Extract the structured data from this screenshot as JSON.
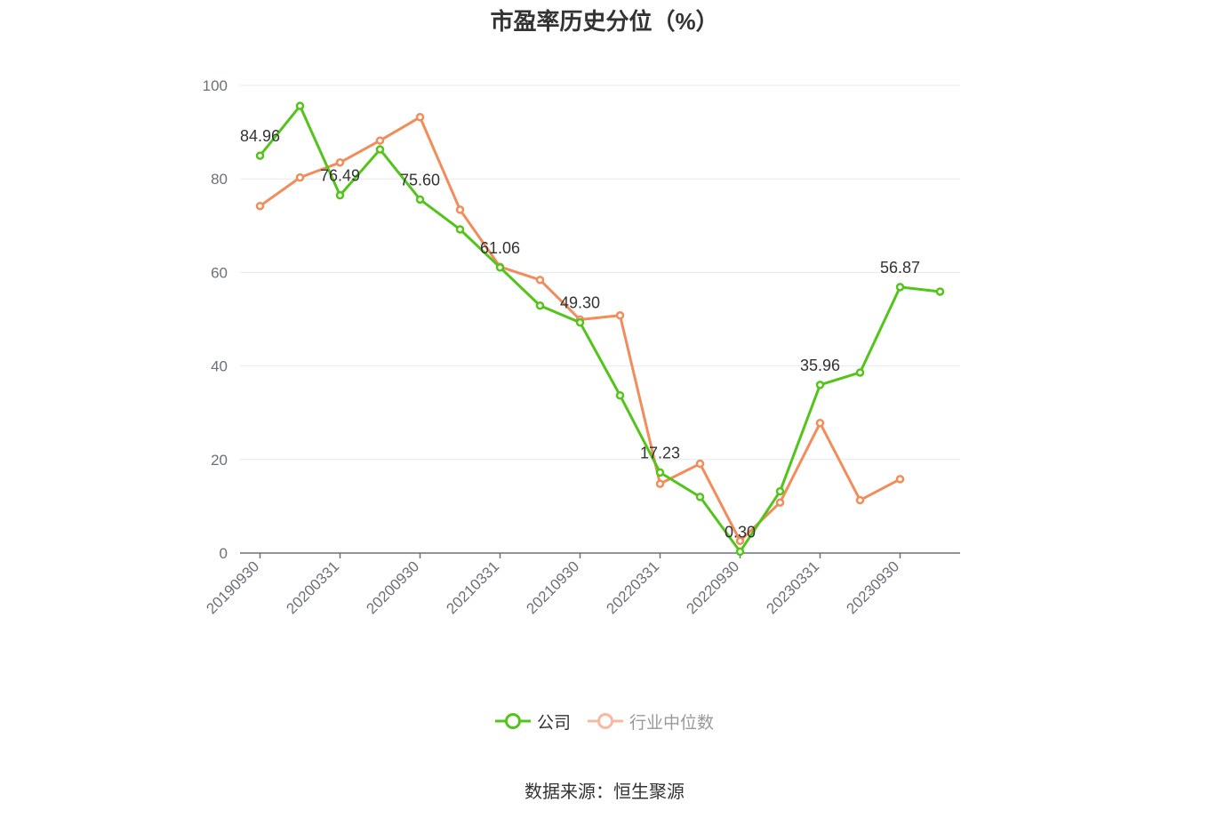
{
  "chart_data": {
    "type": "line",
    "title": "市盈率历史分位（%）",
    "x": [
      "20190930",
      "",
      "20200331",
      "",
      "20200930",
      "",
      "20210331",
      "",
      "20210930",
      "",
      "20220331",
      "",
      "20220930",
      "",
      "20230331",
      "",
      "20230930",
      ""
    ],
    "ylim": [
      0,
      100
    ],
    "yticks": [
      0,
      20,
      40,
      60,
      80,
      100
    ],
    "grid": true,
    "legend_position": "bottom",
    "series": [
      {
        "name": "公司",
        "color": "#52c41a",
        "values": [
          84.96,
          95.6,
          76.49,
          86.3,
          75.6,
          69.2,
          61.06,
          52.9,
          49.3,
          33.7,
          17.23,
          12.0,
          0.3,
          13.2,
          35.96,
          38.6,
          56.87,
          55.9
        ],
        "labels": [
          "84.96",
          null,
          "76.49",
          null,
          "75.60",
          null,
          "61.06",
          null,
          "49.30",
          null,
          "17.23",
          null,
          "0.30",
          null,
          "35.96",
          null,
          "56.87",
          null
        ]
      },
      {
        "name": "行业中位数",
        "color": "#f28c5a",
        "values": [
          74.2,
          80.3,
          83.5,
          88.2,
          93.2,
          73.4,
          61.2,
          58.4,
          49.9,
          50.8,
          14.8,
          19.1,
          2.6,
          10.8,
          27.8,
          11.3,
          15.8,
          null
        ]
      }
    ]
  },
  "source": "数据来源：恒生聚源"
}
